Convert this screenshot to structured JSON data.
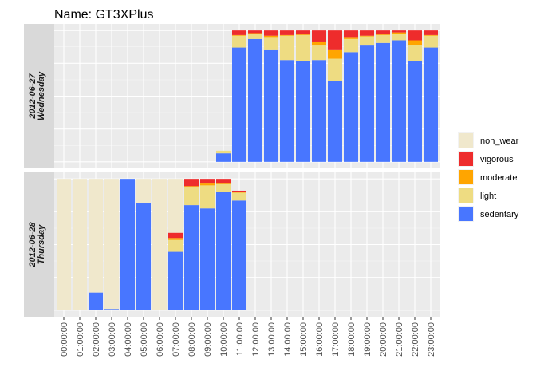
{
  "chart_data": {
    "type": "bar",
    "title": "Name:  GT3XPlus",
    "stacked": true,
    "y_normalized_to_hour": true,
    "grid": true,
    "legend_placement": "right",
    "categories": [
      "00:00:00",
      "01:00:00",
      "02:00:00",
      "03:00:00",
      "04:00:00",
      "05:00:00",
      "06:00:00",
      "07:00:00",
      "08:00:00",
      "09:00:00",
      "10:00:00",
      "11:00:00",
      "12:00:00",
      "13:00:00",
      "14:00:00",
      "15:00:00",
      "16:00:00",
      "17:00:00",
      "18:00:00",
      "19:00:00",
      "20:00:00",
      "21:00:00",
      "22:00:00",
      "23:00:00"
    ],
    "stack_order": [
      "sedentary",
      "light",
      "moderate",
      "vigorous",
      "non_wear"
    ],
    "legend": [
      {
        "key": "non_wear",
        "label": "non_wear",
        "color": "#F0E8CC"
      },
      {
        "key": "vigorous",
        "label": "vigorous",
        "color": "#EE2C2C"
      },
      {
        "key": "moderate",
        "label": "moderate",
        "color": "#FFA500"
      },
      {
        "key": "light",
        "label": "light",
        "color": "#EEDC82"
      },
      {
        "key": "sedentary",
        "label": "sedentary",
        "color": "#4876FF"
      }
    ],
    "facets": [
      {
        "date": "2012-06-27",
        "weekday": "Wednesday",
        "bars": [
          {
            "x": "10:00:00",
            "sedentary": 0.065,
            "light": 0.02,
            "moderate": 0.0,
            "vigorous": 0.0,
            "non_wear": 0.0
          },
          {
            "x": "11:00:00",
            "sedentary": 0.87,
            "light": 0.09,
            "moderate": 0.005,
            "vigorous": 0.035,
            "non_wear": 0.0
          },
          {
            "x": "12:00:00",
            "sedentary": 0.935,
            "light": 0.04,
            "moderate": 0.005,
            "vigorous": 0.02,
            "non_wear": 0.0
          },
          {
            "x": "13:00:00",
            "sedentary": 0.85,
            "light": 0.1,
            "moderate": 0.01,
            "vigorous": 0.04,
            "non_wear": 0.0
          },
          {
            "x": "14:00:00",
            "sedentary": 0.775,
            "light": 0.185,
            "moderate": 0.005,
            "vigorous": 0.035,
            "non_wear": 0.0
          },
          {
            "x": "15:00:00",
            "sedentary": 0.765,
            "light": 0.2,
            "moderate": 0.005,
            "vigorous": 0.03,
            "non_wear": 0.0
          },
          {
            "x": "16:00:00",
            "sedentary": 0.775,
            "light": 0.11,
            "moderate": 0.025,
            "vigorous": 0.09,
            "non_wear": 0.0
          },
          {
            "x": "17:00:00",
            "sedentary": 0.615,
            "light": 0.17,
            "moderate": 0.065,
            "vigorous": 0.15,
            "non_wear": 0.0
          },
          {
            "x": "18:00:00",
            "sedentary": 0.835,
            "light": 0.1,
            "moderate": 0.015,
            "vigorous": 0.05,
            "non_wear": 0.0
          },
          {
            "x": "19:00:00",
            "sedentary": 0.885,
            "light": 0.07,
            "moderate": 0.005,
            "vigorous": 0.04,
            "non_wear": 0.0
          },
          {
            "x": "20:00:00",
            "sedentary": 0.905,
            "light": 0.06,
            "moderate": 0.005,
            "vigorous": 0.03,
            "non_wear": 0.0
          },
          {
            "x": "21:00:00",
            "sedentary": 0.925,
            "light": 0.05,
            "moderate": 0.01,
            "vigorous": 0.015,
            "non_wear": 0.0
          },
          {
            "x": "22:00:00",
            "sedentary": 0.77,
            "light": 0.12,
            "moderate": 0.035,
            "vigorous": 0.075,
            "non_wear": 0.0
          },
          {
            "x": "23:00:00",
            "sedentary": 0.87,
            "light": 0.09,
            "moderate": 0.005,
            "vigorous": 0.035,
            "non_wear": 0.0
          }
        ]
      },
      {
        "date": "2012-06-28",
        "weekday": "Thursday",
        "bars": [
          {
            "x": "00:00:00",
            "sedentary": 0.0,
            "light": 0.0,
            "moderate": 0.0,
            "vigorous": 0.0,
            "non_wear": 1.0
          },
          {
            "x": "01:00:00",
            "sedentary": 0.0,
            "light": 0.0,
            "moderate": 0.0,
            "vigorous": 0.0,
            "non_wear": 1.0
          },
          {
            "x": "02:00:00",
            "sedentary": 0.135,
            "light": 0.0,
            "moderate": 0.0,
            "vigorous": 0.0,
            "non_wear": 0.865
          },
          {
            "x": "03:00:00",
            "sedentary": 0.01,
            "light": 0.0,
            "moderate": 0.0,
            "vigorous": 0.0,
            "non_wear": 0.99
          },
          {
            "x": "04:00:00",
            "sedentary": 1.0,
            "light": 0.0,
            "moderate": 0.0,
            "vigorous": 0.0,
            "non_wear": 0.0
          },
          {
            "x": "05:00:00",
            "sedentary": 0.815,
            "light": 0.0,
            "moderate": 0.0,
            "vigorous": 0.0,
            "non_wear": 0.185
          },
          {
            "x": "06:00:00",
            "sedentary": 0.0,
            "light": 0.0,
            "moderate": 0.0,
            "vigorous": 0.0,
            "non_wear": 1.0
          },
          {
            "x": "07:00:00",
            "sedentary": 0.445,
            "light": 0.09,
            "moderate": 0.015,
            "vigorous": 0.04,
            "non_wear": 0.41
          },
          {
            "x": "08:00:00",
            "sedentary": 0.8,
            "light": 0.14,
            "moderate": 0.005,
            "vigorous": 0.055,
            "non_wear": 0.0
          },
          {
            "x": "09:00:00",
            "sedentary": 0.775,
            "light": 0.175,
            "moderate": 0.02,
            "vigorous": 0.03,
            "non_wear": 0.0
          },
          {
            "x": "10:00:00",
            "sedentary": 0.9,
            "light": 0.065,
            "moderate": 0.005,
            "vigorous": 0.03,
            "non_wear": 0.0
          },
          {
            "x": "11:00:00",
            "sedentary": 0.835,
            "light": 0.06,
            "moderate": 0.005,
            "vigorous": 0.01,
            "non_wear": 0.0
          }
        ]
      }
    ]
  }
}
